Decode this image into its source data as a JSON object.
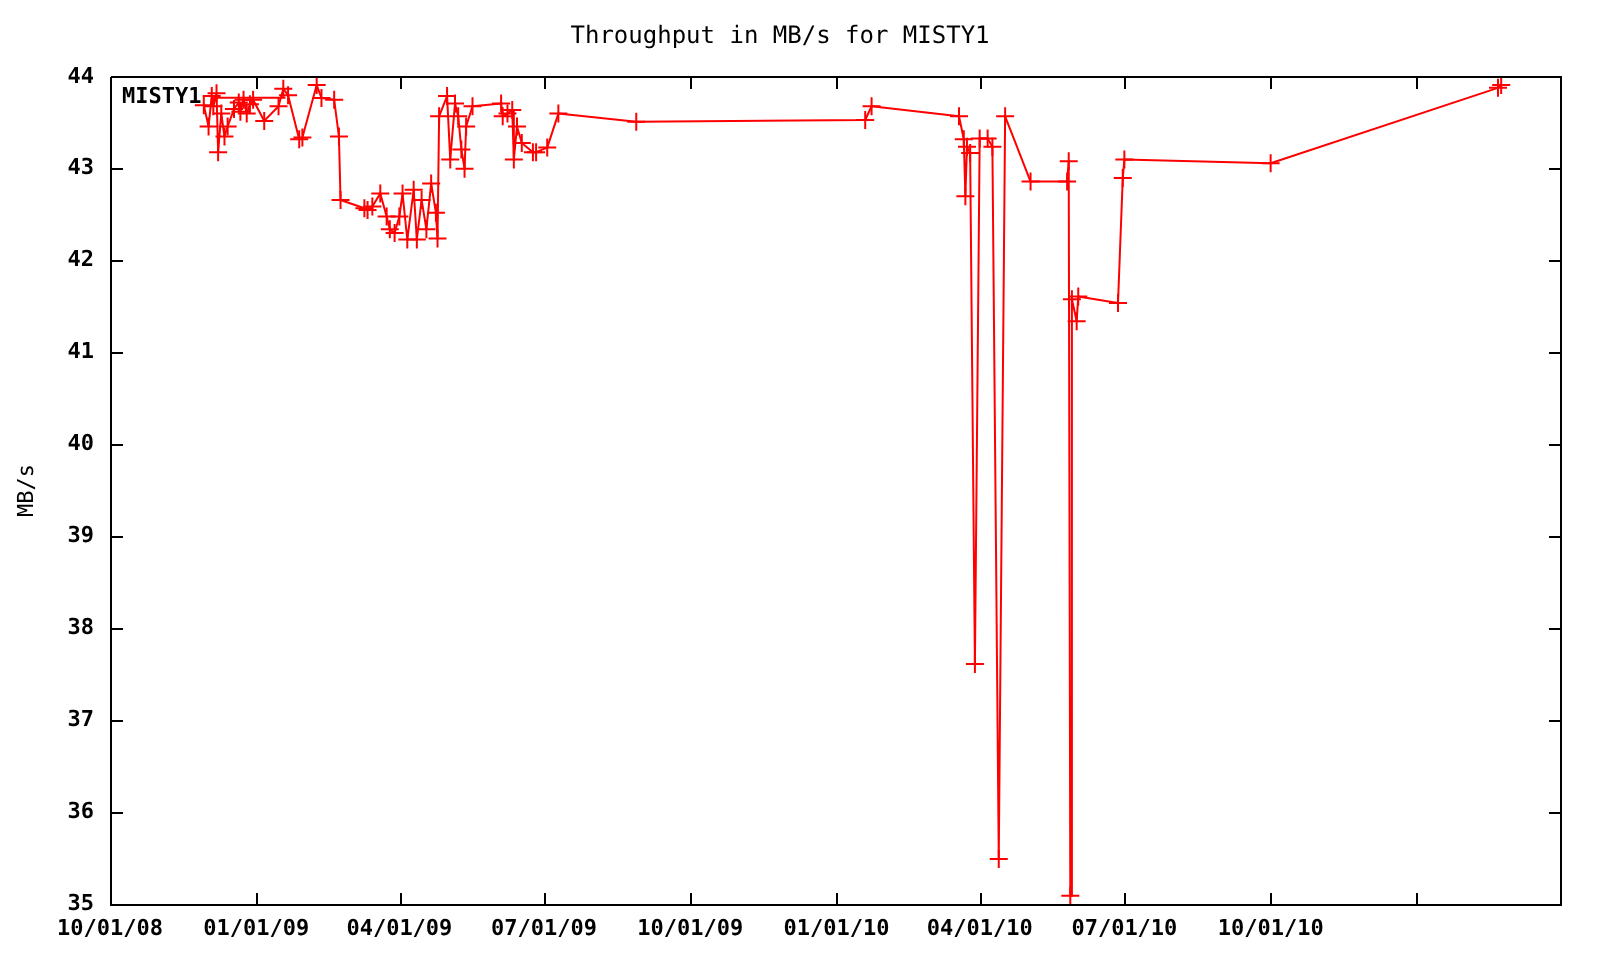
{
  "chart_data": {
    "type": "line",
    "title": "Throughput in MB/s for MISTY1",
    "ylabel": "MB/s",
    "x": [
      "2008-11-29",
      "2008-12-02",
      "2008-12-04",
      "2008-12-05",
      "2008-12-07",
      "2008-12-08",
      "2008-12-10",
      "2008-12-12",
      "2008-12-14",
      "2008-12-18",
      "2008-12-21",
      "2008-12-22",
      "2008-12-24",
      "2008-12-26",
      "2008-12-28",
      "2008-12-30",
      "2009-01-06",
      "2009-01-15",
      "2009-01-18",
      "2009-01-21",
      "2009-01-28",
      "2009-01-30",
      "2009-02-08",
      "2009-02-11",
      "2009-02-19",
      "2009-02-22",
      "2009-02-23",
      "2009-03-10",
      "2009-03-12",
      "2009-03-15",
      "2009-03-20",
      "2009-03-24",
      "2009-03-26",
      "2009-03-29",
      "2009-04-01",
      "2009-04-03",
      "2009-04-06",
      "2009-04-10",
      "2009-04-12",
      "2009-04-15",
      "2009-04-18",
      "2009-04-21",
      "2009-04-24",
      "2009-04-25",
      "2009-04-26",
      "2009-05-01",
      "2009-05-03",
      "2009-05-06",
      "2009-05-08",
      "2009-05-10",
      "2009-05-12",
      "2009-05-13",
      "2009-05-17",
      "2009-06-04",
      "2009-06-05",
      "2009-06-08",
      "2009-06-11",
      "2009-06-12",
      "2009-06-14",
      "2009-06-17",
      "2009-06-24",
      "2009-06-26",
      "2009-07-03",
      "2009-07-10",
      "2009-08-28",
      "2010-01-19",
      "2010-01-23",
      "2010-03-19",
      "2010-03-22",
      "2010-03-23",
      "2010-03-24",
      "2010-03-26",
      "2010-03-29",
      "2010-04-01",
      "2010-04-06",
      "2010-04-09",
      "2010-04-13",
      "2010-04-17",
      "2010-05-03",
      "2010-05-26",
      "2010-05-27",
      "2010-05-28",
      "2010-05-29",
      "2010-06-01",
      "2010-06-02",
      "2010-06-27",
      "2010-06-30",
      "2010-07-01",
      "2010-10-01",
      "2011-02-21",
      "2011-02-23"
    ],
    "series": [
      {
        "name": "MISTY1",
        "color": "#ff0000",
        "values": [
          43.69,
          43.46,
          43.79,
          43.68,
          43.82,
          43.18,
          43.6,
          43.35,
          43.46,
          43.65,
          43.72,
          43.62,
          43.75,
          43.6,
          43.7,
          43.75,
          43.52,
          43.68,
          43.87,
          43.8,
          43.32,
          43.34,
          43.91,
          43.77,
          43.75,
          43.35,
          42.66,
          42.57,
          42.55,
          42.59,
          42.73,
          42.48,
          42.34,
          42.3,
          42.48,
          42.73,
          42.23,
          42.77,
          42.23,
          42.66,
          42.34,
          42.84,
          42.52,
          42.24,
          43.57,
          43.79,
          43.1,
          43.71,
          43.57,
          43.21,
          43.0,
          43.46,
          43.68,
          43.71,
          43.57,
          43.6,
          43.64,
          43.1,
          43.46,
          43.28,
          43.18,
          43.18,
          43.23,
          43.6,
          43.51,
          43.53,
          43.68,
          43.57,
          43.32,
          42.7,
          43.24,
          43.17,
          37.61,
          43.33,
          43.33,
          43.24,
          35.49,
          43.57,
          42.86,
          42.86,
          43.08,
          35.09,
          41.58,
          41.34,
          41.61,
          41.54,
          42.9,
          43.1,
          43.06,
          43.88,
          43.91
        ]
      }
    ],
    "xlim": [
      "2008-10-01",
      "2011-04-01"
    ],
    "xticks": [
      {
        "value": "2008-10-01",
        "label": "10/01/08"
      },
      {
        "value": "2009-01-01",
        "label": "01/01/09"
      },
      {
        "value": "2009-04-01",
        "label": "04/01/09"
      },
      {
        "value": "2009-07-01",
        "label": "07/01/09"
      },
      {
        "value": "2009-10-01",
        "label": "10/01/09"
      },
      {
        "value": "2010-01-01",
        "label": "01/01/10"
      },
      {
        "value": "2010-04-01",
        "label": "04/01/10"
      },
      {
        "value": "2010-07-01",
        "label": "07/01/10"
      },
      {
        "value": "2010-10-01",
        "label": "10/01/10"
      },
      {
        "value": "2011-01-01",
        "label": null
      },
      {
        "value": "2011-04-01",
        "label": null
      }
    ],
    "ylim": [
      35,
      44
    ],
    "yticks": [
      35,
      36,
      37,
      38,
      39,
      40,
      41,
      42,
      43,
      44
    ],
    "legend": "top left",
    "marker": "cross",
    "line_style": "solid"
  }
}
